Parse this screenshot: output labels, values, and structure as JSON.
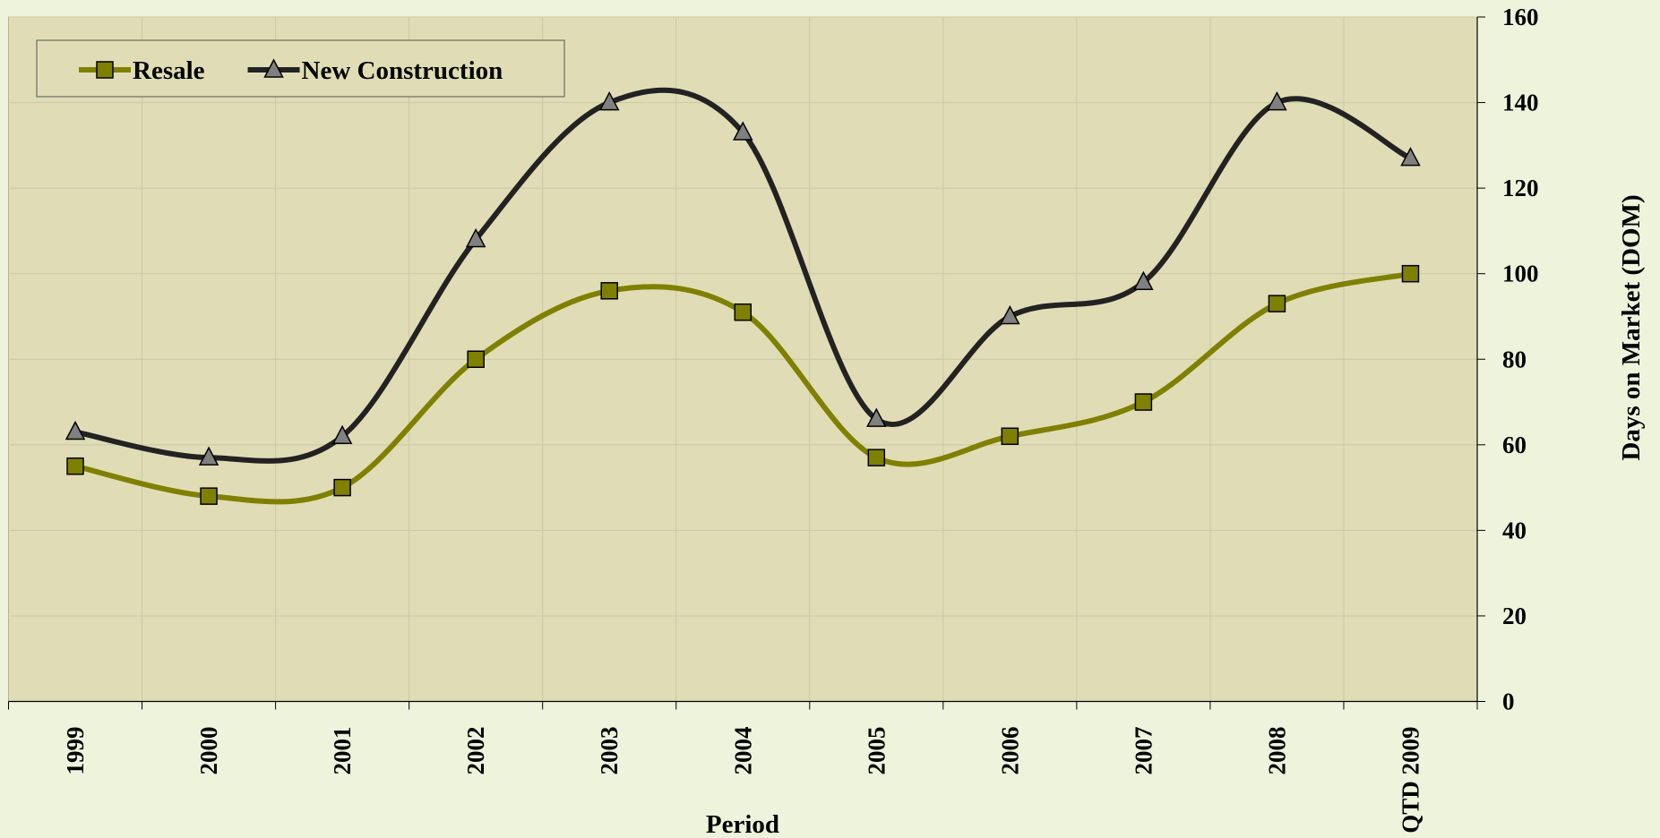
{
  "chart_data": {
    "type": "line",
    "x_label": "Period",
    "y_label": "Days on Market (DOM)",
    "categories": [
      "1999",
      "2000",
      "2001",
      "2002",
      "2003",
      "2004",
      "2005",
      "2006",
      "2007",
      "2008",
      "QTD 2009"
    ],
    "series": [
      {
        "name": "Resale",
        "color": "#808000",
        "marker": "square",
        "values": [
          55,
          48,
          50,
          80,
          96,
          91,
          57,
          62,
          70,
          93,
          100
        ]
      },
      {
        "name": "New Construction",
        "color": "#222222",
        "marker": "triangle",
        "values": [
          63,
          57,
          62,
          108,
          140,
          133,
          66,
          90,
          98,
          140,
          127
        ]
      }
    ],
    "ylim": [
      0,
      160
    ],
    "yticks": [
      0,
      20,
      40,
      60,
      80,
      100,
      120,
      140,
      160
    ],
    "y_axis_side": "right",
    "grid": true,
    "smooth": true,
    "legend": "upper left"
  }
}
